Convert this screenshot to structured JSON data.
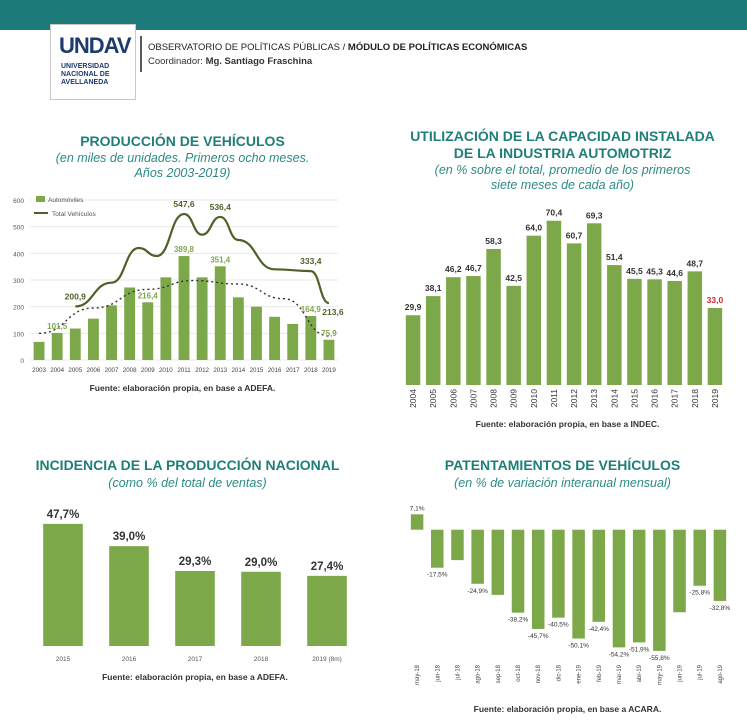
{
  "header": {
    "logo_mark": "UNDAV",
    "logo_text": "UNIVERSIDAD NACIONAL DE AVELLANEDA",
    "org_part1": "OBSERVATORIO DE POLÍTICAS PÚBLICAS / ",
    "org_part2": "MÓDULO DE POLÍTICAS ECONÓMICAS",
    "coord_label": "Coordinador: ",
    "coord_name": "Mg. Santiago Fraschina",
    "bar_color": "#1c7a78"
  },
  "charts": {
    "produccion": {
      "title": "PRODUCCIÓN DE VEHÍCULOS",
      "subtitle_1": "(en miles de unidades. Primeros ocho meses.",
      "subtitle_2": "Años 2003-2019)",
      "source": "Fuente: elaboración propia, en base a ADEFA."
    },
    "capacidad": {
      "title_1": "UTILIZACIÓN DE LA CAPACIDAD INSTALADA",
      "title_2": "DE LA INDUSTRIA AUTOMOTRIZ",
      "subtitle_1": "(en % sobre el total, promedio de los primeros",
      "subtitle_2": "siete meses de cada año)",
      "source": "Fuente: elaboración propia, en base a INDEC."
    },
    "incidencia": {
      "title": "INCIDENCIA DE LA PRODUCCIÓN NACIONAL",
      "subtitle": "(como % del total de ventas)",
      "source": "Fuente: elaboración propia, en base a ADEFA."
    },
    "patentamientos": {
      "title": "PATENTAMIENTOS DE VEHÍCULOS",
      "subtitle": "(en % de variación interanual mensual)",
      "source": "Fuente: elaboración propia, en base a ACARA."
    }
  },
  "chart_data": [
    {
      "id": "produccion",
      "type": "bar",
      "title": "PRODUCCIÓN DE VEHÍCULOS",
      "categories": [
        "2003",
        "2004",
        "2005",
        "2006",
        "2007",
        "2008",
        "2009",
        "2010",
        "2011",
        "2012",
        "2013",
        "2014",
        "2015",
        "2016",
        "2017",
        "2018",
        "2019"
      ],
      "series": [
        {
          "name": "Automóviles",
          "type": "bar",
          "color": "#7da84a",
          "values": [
            68,
            101.5,
            118,
            155,
            205,
            272,
            216.4,
            310,
            389.8,
            310,
            351.4,
            235,
            200,
            162,
            135,
            164.9,
            75.9
          ],
          "labels": {
            "1": "101,5",
            "6": "216,4",
            "8": "389,8",
            "10": "351,4",
            "15": "164,9",
            "16": "75,9"
          }
        },
        {
          "name": "Total Vehículos",
          "type": "line",
          "color": "#4f6128",
          "values": [
            null,
            null,
            200.9,
            null,
            null,
            null,
            null,
            null,
            547.6,
            null,
            536.4,
            null,
            null,
            null,
            null,
            333.4,
            213.6
          ],
          "smooth_path": [
            [
              2,
              200.9
            ],
            [
              4,
              290
            ],
            [
              5.5,
              420
            ],
            [
              6.5,
              390
            ],
            [
              8,
              547.6
            ],
            [
              9,
              470
            ],
            [
              10,
              536.4
            ],
            [
              11,
              450
            ],
            [
              13,
              340
            ],
            [
              15,
              333.4
            ],
            [
              16,
              213.6
            ]
          ],
          "labels": {
            "2": "200,9",
            "8": "547,6",
            "10": "536,4",
            "15": "333,4",
            "16": "213,6"
          }
        }
      ],
      "trend": [
        [
          0,
          100
        ],
        [
          3,
          195
        ],
        [
          6,
          265
        ],
        [
          8.5,
          298
        ],
        [
          11,
          285
        ],
        [
          13.5,
          230
        ],
        [
          16,
          90
        ]
      ],
      "ylim": [
        0,
        600
      ],
      "yticks": [
        "0",
        "100",
        "200",
        "300",
        "400",
        "500",
        "600"
      ],
      "legend_position": "top-left"
    },
    {
      "id": "capacidad",
      "type": "bar",
      "categories": [
        "2004",
        "2005",
        "2006",
        "2007",
        "2008",
        "2009",
        "2010",
        "2011",
        "2012",
        "2013",
        "2014",
        "2015",
        "2016",
        "2017",
        "2018",
        "2019"
      ],
      "values": [
        29.9,
        38.1,
        46.2,
        46.7,
        58.3,
        42.5,
        64.0,
        70.4,
        60.7,
        69.3,
        51.4,
        45.5,
        45.3,
        44.6,
        48.7,
        33.0
      ],
      "labels": [
        "29,9",
        "38,1",
        "46,2",
        "46,7",
        "58,3",
        "42,5",
        "64,0",
        "70,4",
        "60,7",
        "69,3",
        "51,4",
        "45,5",
        "45,3",
        "44,6",
        "48,7",
        "33,0"
      ],
      "highlight_last_color": "#d6262b",
      "color": "#7da84a",
      "ylim": [
        0,
        75
      ]
    },
    {
      "id": "incidencia",
      "type": "bar",
      "categories": [
        "2015",
        "2016",
        "2017",
        "2018",
        "2019 (8m)"
      ],
      "values": [
        47.7,
        39.0,
        29.3,
        29.0,
        27.4
      ],
      "labels": [
        "47,7%",
        "39,0%",
        "29,3%",
        "29,0%",
        "27,4%"
      ],
      "color": "#7da84a",
      "ylim": [
        0,
        50
      ]
    },
    {
      "id": "patentamientos",
      "type": "bar",
      "categories": [
        "may-18",
        "jun-18",
        "jul-18",
        "ago-18",
        "sep-18",
        "oct-18",
        "nov-18",
        "dic-18",
        "ene-19",
        "feb-19",
        "mar-19",
        "abr-19",
        "may-19",
        "jun-19",
        "jul-19",
        "ago-19"
      ],
      "values": [
        7.1,
        -17.5,
        -14.0,
        -24.9,
        -30.0,
        -38.2,
        -45.7,
        -40.5,
        -50.1,
        -42.4,
        -54.2,
        -51.9,
        -55.8,
        -38.0,
        -25.8,
        -32.8
      ],
      "labels": {
        "0": "7,1%",
        "1": "-17,5%",
        "3": "-24,9%",
        "5": "-38,2%",
        "6": "-45,7%",
        "7": "-40,5%",
        "8": "-50,1%",
        "9": "-42,4%",
        "10": "-54,2%",
        "11": "-51,9%",
        "12": "-55,8%",
        "14": "-25,8%",
        "15": "-32,8%"
      },
      "color": "#7da84a",
      "ylim": [
        -60,
        10
      ]
    }
  ]
}
